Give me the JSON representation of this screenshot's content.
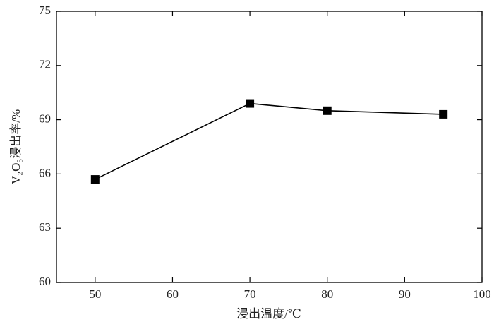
{
  "chart_data": {
    "type": "line",
    "x": [
      50,
      70,
      80,
      95
    ],
    "series": [
      {
        "name": "V₂O₅浸出率",
        "color": "#000000",
        "values": [
          65.7,
          69.9,
          69.5,
          69.3
        ]
      }
    ],
    "xlim": [
      45,
      100
    ],
    "xticks": [
      50,
      60,
      70,
      80,
      90,
      100
    ],
    "ylim": [
      60,
      75
    ],
    "yticks": [
      60,
      63,
      66,
      69,
      72,
      75
    ],
    "xlabel": "浸出温度/℃",
    "ylabel": "V₂O₅浸出率/%",
    "grid": false
  }
}
